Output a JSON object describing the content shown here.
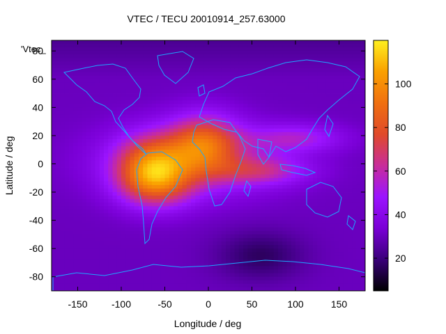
{
  "chart_data": {
    "type": "heatmap",
    "title": "VTEC / TECU 20010914_257.63000",
    "xlabel": "Longitude / deg",
    "ylabel": "Latitude / deg",
    "legend_label": "'Vtec_",
    "xlim": [
      -180,
      180
    ],
    "ylim": [
      -90,
      87.5
    ],
    "xticks": [
      -150,
      -100,
      -50,
      0,
      50,
      100,
      150
    ],
    "yticks": [
      -80,
      -60,
      -40,
      -20,
      0,
      20,
      40,
      60,
      80
    ],
    "colorbar": {
      "range": [
        5,
        120
      ],
      "ticks": [
        20,
        40,
        60,
        80,
        100
      ],
      "palette": [
        "#000000",
        "#3a007a",
        "#7a00d6",
        "#9b14ff",
        "#c82d9a",
        "#e04a2a",
        "#f07010",
        "#faa000",
        "#fff020"
      ]
    },
    "features": [
      {
        "name": "equatorial-anomaly-peak-africa",
        "lon": -5,
        "lat": 15,
        "value": 110
      },
      {
        "name": "equatorial-anomaly-peak-south-america",
        "lon": -65,
        "lat": 0,
        "value": 105
      },
      {
        "name": "southern-crest",
        "lon": -60,
        "lat": -15,
        "value": 95
      },
      {
        "name": "asian-tongue",
        "lon": 100,
        "lat": 18,
        "value": 70
      },
      {
        "name": "indian-ocean-tongue",
        "lon": 60,
        "lat": -5,
        "value": 75
      },
      {
        "name": "antarctic-minimum",
        "lon": 60,
        "lat": -65,
        "value": 5
      }
    ],
    "background_value": 30
  }
}
